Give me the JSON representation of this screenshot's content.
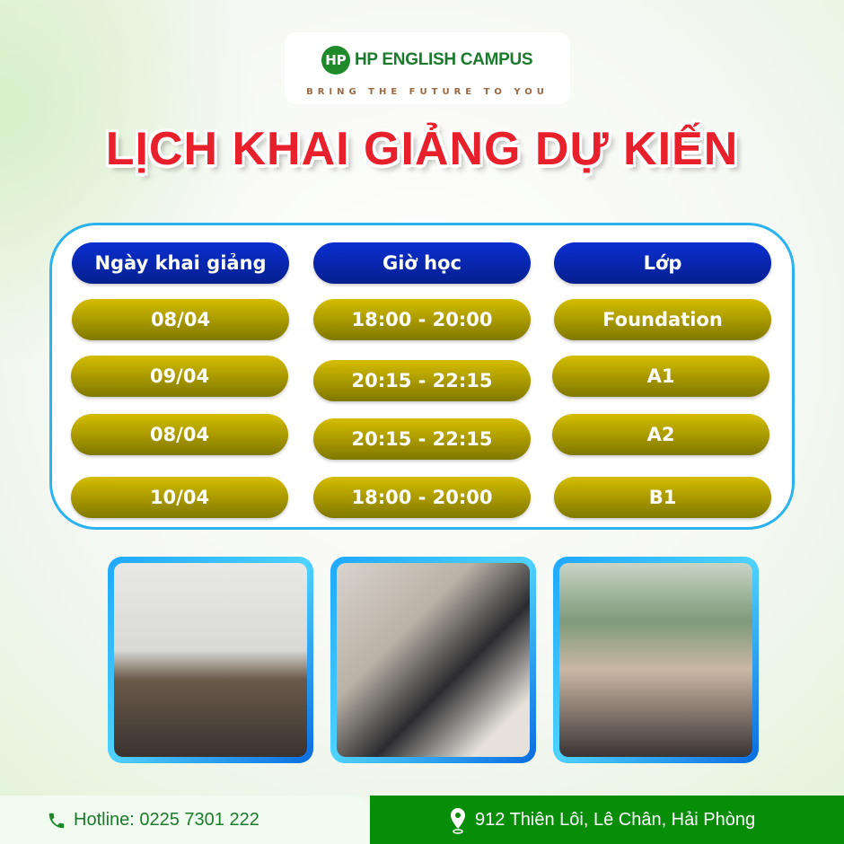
{
  "brand": {
    "name": "HP ENGLISH CAMPUS",
    "logo_letters": "HP",
    "tagline": "BRING THE FUTURE TO YOU"
  },
  "title": "LỊCH KHAI GIẢNG DỰ KIẾN",
  "table": {
    "headers": [
      "Ngày khai giảng",
      "Giờ học",
      "Lớp"
    ],
    "rows": [
      [
        "08/04",
        "18:00 - 20:00",
        "Foundation"
      ],
      [
        "09/04",
        "20:15 - 22:15",
        "A1"
      ],
      [
        "08/04",
        "20:15 - 22:15",
        "A2"
      ],
      [
        "10/04",
        "18:00 - 20:00",
        "B1"
      ]
    ]
  },
  "footer": {
    "hotline": "Hotline: 0225 7301 222",
    "address": "912 Thiên Lôi, Lê Chân, Hải Phòng"
  },
  "colors": {
    "title": "#e8202c",
    "header_pill": "#0a2fd0",
    "cell_pill": "#b8a400",
    "footer_green": "#088d08",
    "brand_green": "#1b7a2c"
  }
}
